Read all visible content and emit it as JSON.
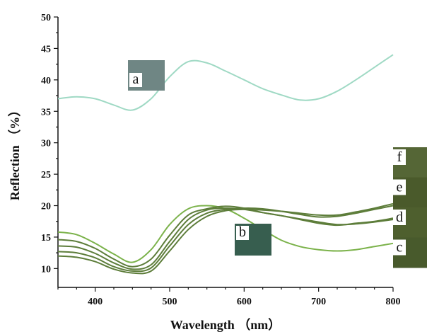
{
  "chart_data": {
    "type": "line",
    "xlabel": "Wavelength （nm）",
    "ylabel": "Reflection （%）",
    "xlim": [
      350,
      800
    ],
    "ylim": [
      7,
      50
    ],
    "x_ticks": [
      400,
      500,
      600,
      700,
      800
    ],
    "y_ticks": [
      10,
      15,
      20,
      25,
      30,
      35,
      40,
      45,
      50
    ],
    "grid": false,
    "x": [
      350,
      375,
      400,
      425,
      450,
      475,
      500,
      525,
      550,
      575,
      600,
      625,
      650,
      675,
      700,
      725,
      750,
      775,
      800
    ],
    "series": [
      {
        "name": "a",
        "color": "#9fd9c4",
        "values": [
          37.0,
          37.3,
          37.0,
          36.0,
          35.2,
          37.0,
          40.5,
          42.9,
          42.7,
          41.4,
          40.0,
          38.6,
          37.6,
          36.8,
          37.0,
          38.2,
          40.0,
          42.0,
          44.0
        ]
      },
      {
        "name": "b",
        "color": "#7bb24a",
        "values": [
          15.8,
          15.4,
          14.0,
          12.3,
          11.0,
          13.0,
          17.0,
          19.5,
          20.0,
          19.5,
          18.0,
          16.2,
          14.5,
          13.5,
          13.0,
          12.8,
          13.0,
          13.5,
          14.0
        ]
      },
      {
        "name": "c",
        "color": "#5d7d3a",
        "values": [
          14.6,
          14.3,
          13.2,
          11.5,
          10.3,
          11.5,
          15.3,
          18.5,
          19.5,
          19.9,
          19.6,
          18.9,
          18.4,
          17.9,
          17.4,
          17.0,
          17.1,
          17.4,
          17.8
        ]
      },
      {
        "name": "d",
        "color": "#5d7d3a",
        "values": [
          13.6,
          13.4,
          12.4,
          10.9,
          9.9,
          10.6,
          14.3,
          17.8,
          19.3,
          19.6,
          19.4,
          18.9,
          18.4,
          17.8,
          17.2,
          16.9,
          17.2,
          17.5,
          18.0
        ]
      },
      {
        "name": "e",
        "color": "#5d7d3a",
        "values": [
          12.7,
          12.5,
          11.7,
          10.3,
          9.6,
          10.1,
          13.6,
          17.0,
          18.8,
          19.4,
          19.6,
          19.5,
          19.1,
          18.6,
          18.2,
          18.3,
          18.8,
          19.4,
          20.0
        ]
      },
      {
        "name": "f",
        "color": "#5d7d3a",
        "values": [
          12.0,
          11.8,
          11.1,
          9.9,
          9.3,
          9.6,
          12.8,
          16.2,
          18.3,
          19.2,
          19.4,
          19.3,
          19.1,
          18.8,
          18.5,
          18.5,
          19.0,
          19.6,
          20.3
        ]
      }
    ],
    "swatches": [
      {
        "label": "a",
        "color": "#6f8684"
      },
      {
        "label": "b",
        "color": "#375e4f"
      },
      {
        "label": "f",
        "color": "#556636"
      },
      {
        "label": "e",
        "color": "#4a5a2b"
      },
      {
        "label": "d",
        "color": "#4e5f2e"
      },
      {
        "label": "c",
        "color": "#485a2c"
      }
    ]
  }
}
